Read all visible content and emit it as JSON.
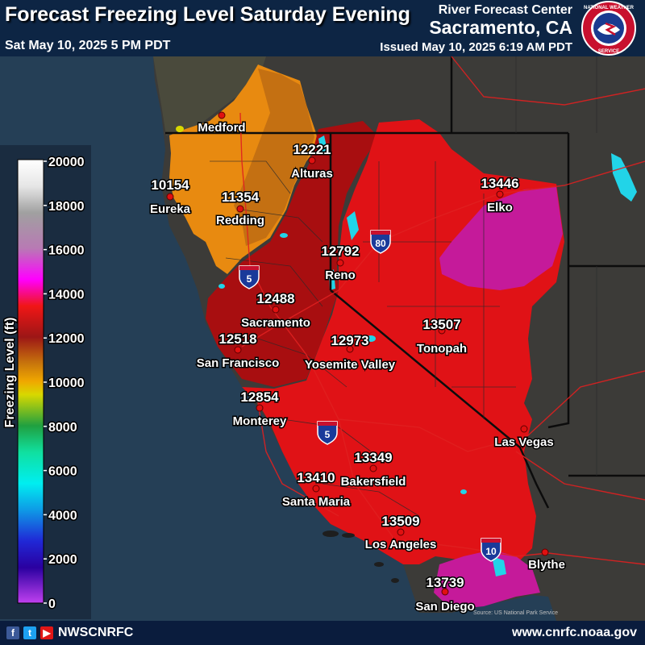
{
  "header": {
    "title": "Forecast Freezing Level Saturday Evening",
    "valid_time": "Sat May 10, 2025 5 PM PDT",
    "center_name": "River Forecast Center",
    "office": "Sacramento, CA",
    "issued": "Issued May 10, 2025 6:19 AM PDT",
    "agency_seal_text": "NATIONAL WEATHER SERVICE"
  },
  "legend": {
    "title": "Freezing Level (ft)",
    "ticks": [
      "20000",
      "18000",
      "16000",
      "14000",
      "12000",
      "10000",
      "8000",
      "6000",
      "4000",
      "2000",
      "0"
    ],
    "tick_values": [
      20000,
      18000,
      16000,
      14000,
      12000,
      10000,
      8000,
      6000,
      4000,
      2000,
      0
    ],
    "colors": [
      "#9a10d8",
      "#3d00b8",
      "#1616d0",
      "#0e86d6",
      "#06d8ee",
      "#1ad994",
      "#0fa040",
      "#a7bf10",
      "#e8e800",
      "#ee9a0a",
      "#c47b10",
      "#9a0c0c",
      "#e80000",
      "#ff00ff",
      "#c070c0",
      "#8a8a8a",
      "#d8d8d8",
      "#ffffff"
    ],
    "gradient_top_to_bottom": [
      "#ffffff",
      "#ebebeb",
      "#9d9d9d",
      "#b97ab5",
      "#ff00ff",
      "#ff1b1b",
      "#9c1616",
      "#c6750d",
      "#ffc000",
      "#c8c800",
      "#14a048",
      "#10dfa0",
      "#00f0f0",
      "#0ea2e6",
      "#1a2ed8",
      "#2a00a0",
      "#8000c8",
      "#c040f0"
    ]
  },
  "map": {
    "colors": {
      "ocean": "#253f56",
      "land": "#3a3a3a",
      "orange": "#e88a10",
      "orange_dark": "#c47012",
      "dark_red": "#aa0e10",
      "red": "#e01216",
      "magenta": "#c8209a",
      "lake": "#22d4e8",
      "roads": "#e02020",
      "borders": "#0c0c0c"
    },
    "cities": [
      {
        "name": "Medford",
        "value": ""
      },
      {
        "name": "Eureka",
        "value": "10154"
      },
      {
        "name": "Redding",
        "value": "11354"
      },
      {
        "name": "Alturas",
        "value": "12221"
      },
      {
        "name": "Elko",
        "value": "13446"
      },
      {
        "name": "Reno",
        "value": "12792"
      },
      {
        "name": "Sacramento",
        "value": "12488"
      },
      {
        "name": "San Francisco",
        "value": "12518"
      },
      {
        "name": "Yosemite Valley",
        "value": "12973"
      },
      {
        "name": "Tonopah",
        "value": "13507"
      },
      {
        "name": "Monterey",
        "value": "12854"
      },
      {
        "name": "Las Vegas",
        "value": ""
      },
      {
        "name": "Bakersfield",
        "value": "13349"
      },
      {
        "name": "Santa Maria",
        "value": "13410"
      },
      {
        "name": "Los Angeles",
        "value": "13509"
      },
      {
        "name": "Blythe",
        "value": ""
      },
      {
        "name": "San Diego",
        "value": "13739"
      }
    ],
    "interstates": [
      "80",
      "5",
      "5",
      "10"
    ],
    "source_note": "Source: US National Park Service"
  },
  "footer": {
    "social_handle": "NWSCNRFC",
    "website": "www.cnrfc.noaa.gov",
    "social_icons": [
      "facebook-icon",
      "twitter-icon",
      "youtube-icon"
    ]
  }
}
